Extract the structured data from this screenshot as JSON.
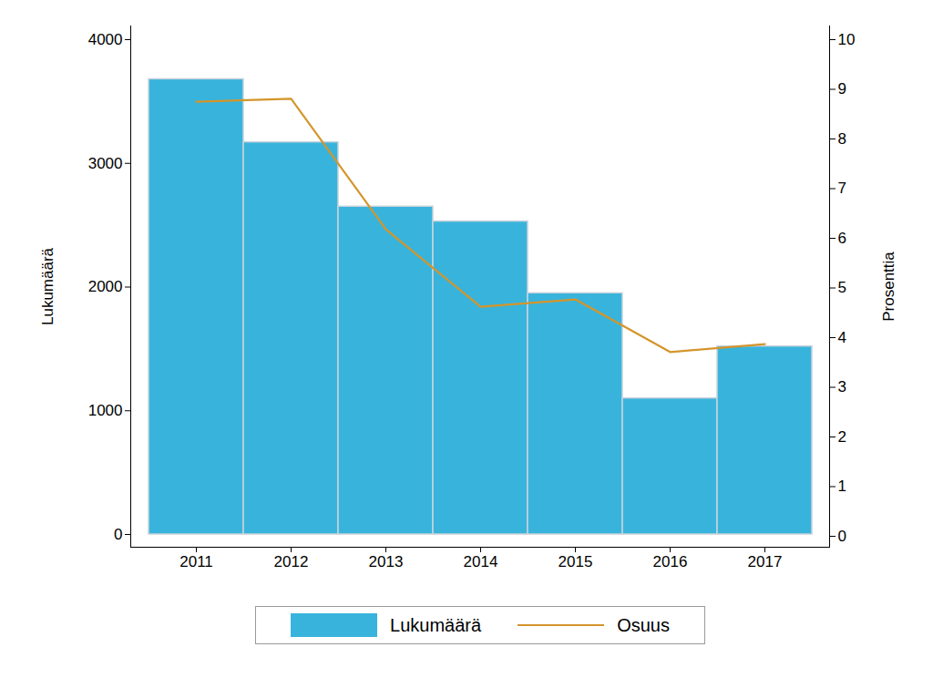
{
  "chart_data": {
    "type": "bar",
    "categories": [
      "2011",
      "2012",
      "2013",
      "2014",
      "2015",
      "2016",
      "2017"
    ],
    "series": [
      {
        "name": "Lukumäärä",
        "type": "bar",
        "color": "#38b4dc",
        "values": [
          3680,
          3170,
          2650,
          2530,
          1950,
          1100,
          1520
        ]
      },
      {
        "name": "Osuus",
        "type": "line",
        "color": "#d4952b",
        "axis": "y2",
        "values": [
          8.75,
          8.81,
          6.18,
          4.62,
          4.77,
          3.71,
          3.87
        ]
      }
    ],
    "ylabel": "Lukumäärä",
    "y2label": "Prosenttia",
    "ylim": [
      0,
      4000
    ],
    "yticks": [
      0,
      1000,
      2000,
      3000,
      4000
    ],
    "y2lim": [
      0,
      10
    ],
    "y2ticks": [
      0,
      1,
      2,
      3,
      4,
      5,
      6,
      7,
      8,
      9,
      10
    ],
    "legend": "bottom"
  }
}
